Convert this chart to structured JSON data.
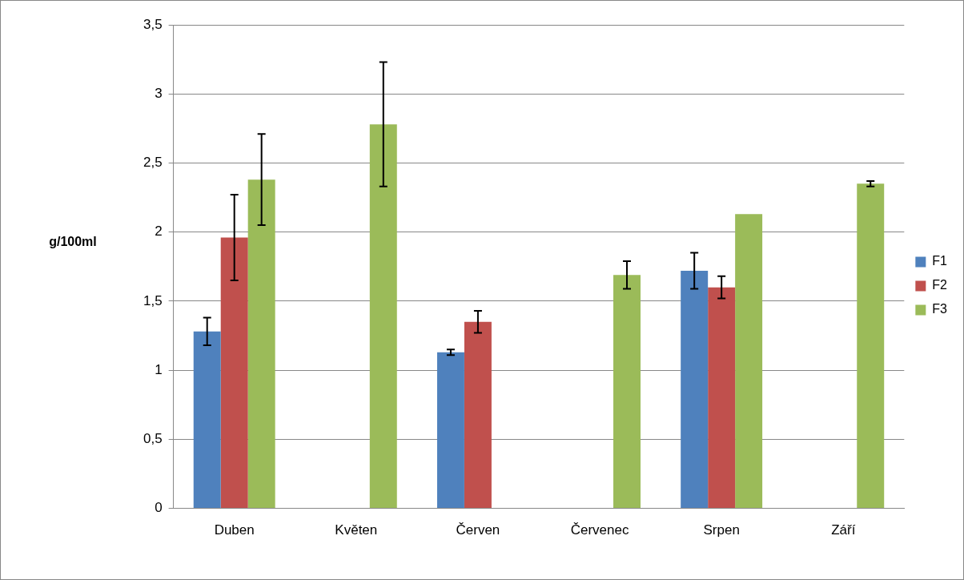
{
  "chart_data": {
    "type": "bar",
    "ylabel": "g/100ml",
    "categories": [
      "Duben",
      "Květen",
      "Červen",
      "Červenec",
      "Srpen",
      "Září"
    ],
    "series": [
      {
        "name": "F1",
        "color": "#4f81bd",
        "values": [
          1.28,
          null,
          1.13,
          null,
          1.72,
          null
        ],
        "errors": [
          0.1,
          null,
          0.02,
          null,
          0.13,
          null
        ]
      },
      {
        "name": "F2",
        "color": "#c0504d",
        "values": [
          1.96,
          null,
          1.35,
          null,
          1.6,
          null
        ],
        "errors": [
          0.31,
          null,
          0.08,
          null,
          0.08,
          null
        ]
      },
      {
        "name": "F3",
        "color": "#9bbb59",
        "values": [
          2.38,
          2.78,
          null,
          1.69,
          2.13,
          2.35
        ],
        "errors": [
          0.33,
          0.45,
          null,
          0.1,
          null,
          0.02
        ]
      }
    ],
    "ylim": [
      0,
      3.5
    ],
    "yticks": [
      0,
      {
        "value": 0.5,
        "label": "0,5"
      },
      1,
      {
        "value": 1.5,
        "label": "1,5"
      },
      2,
      {
        "value": 2.5,
        "label": "2,5"
      },
      3,
      {
        "value": 3.5,
        "label": "3,5"
      }
    ],
    "grid": "y",
    "legend": "right"
  }
}
